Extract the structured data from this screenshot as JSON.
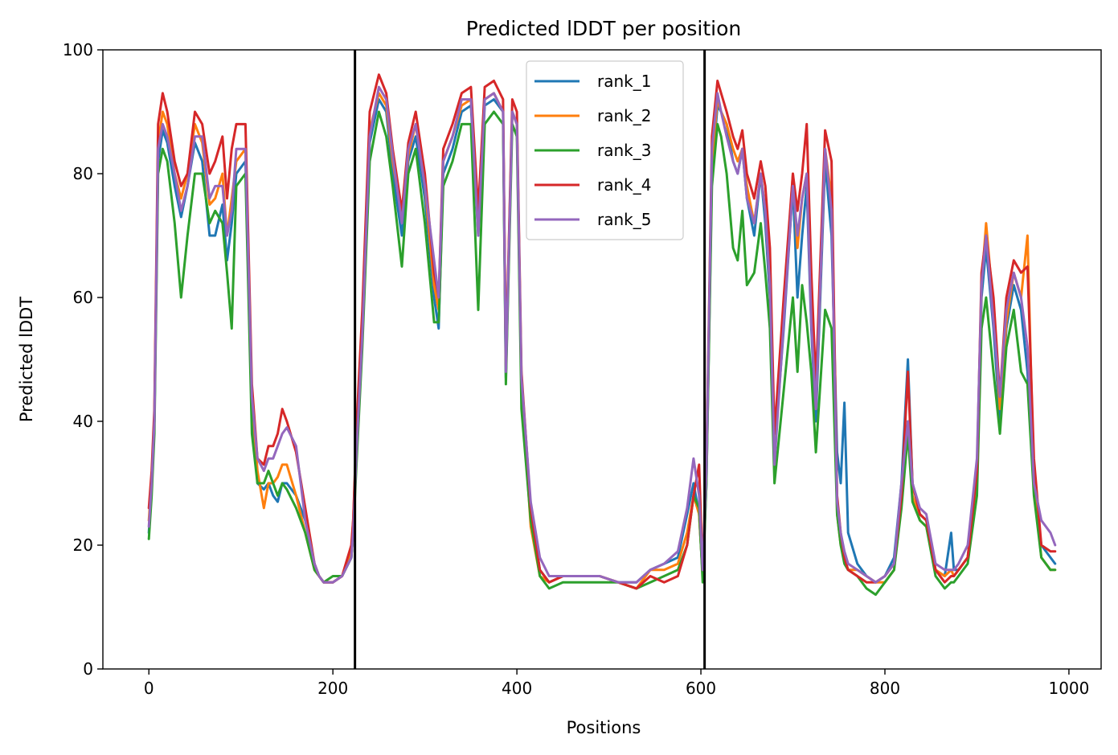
{
  "chart_data": {
    "type": "line",
    "title": "Predicted lDDT per position",
    "xlabel": "Positions",
    "ylabel": "Predicted lDDT",
    "xlim": [
      -50,
      1035
    ],
    "ylim": [
      0,
      100
    ],
    "xticks": [
      0,
      200,
      400,
      600,
      800,
      1000
    ],
    "yticks": [
      0,
      20,
      40,
      60,
      80,
      100
    ],
    "grid": false,
    "legend_position": "top-center",
    "vlines": [
      224,
      604
    ],
    "vline_color": "#000000",
    "series": [
      {
        "name": "rank_1",
        "color": "#1f77b4",
        "x": [
          0,
          3,
          6,
          10,
          15,
          20,
          28,
          35,
          42,
          50,
          58,
          66,
          72,
          80,
          85,
          90,
          95,
          105,
          112,
          118,
          125,
          130,
          135,
          140,
          145,
          150,
          160,
          170,
          180,
          185,
          190,
          200,
          210,
          220,
          222,
          226,
          232,
          240,
          250,
          258,
          265,
          275,
          282,
          290,
          300,
          310,
          315,
          320,
          330,
          340,
          350,
          358,
          365,
          375,
          385,
          388,
          395,
          400,
          405,
          415,
          425,
          435,
          450,
          470,
          490,
          510,
          530,
          545,
          560,
          575,
          585,
          592,
          598,
          602,
          606,
          612,
          618,
          622,
          628,
          635,
          640,
          645,
          650,
          658,
          665,
          670,
          675,
          680,
          690,
          700,
          705,
          710,
          715,
          720,
          725,
          735,
          742,
          748,
          752,
          756,
          760,
          770,
          780,
          790,
          800,
          810,
          818,
          825,
          830,
          838,
          845,
          855,
          865,
          872,
          875,
          880,
          890,
          900,
          905,
          910,
          918,
          925,
          932,
          940,
          948,
          955,
          962,
          970,
          980,
          985
        ],
        "y": [
          22,
          30,
          40,
          82,
          87,
          85,
          78,
          73,
          78,
          85,
          82,
          70,
          70,
          75,
          66,
          72,
          80,
          82,
          42,
          30,
          29,
          30,
          28,
          27,
          30,
          30,
          28,
          24,
          17,
          15,
          14,
          14,
          15,
          18,
          22,
          36,
          55,
          85,
          92,
          90,
          80,
          70,
          82,
          86,
          76,
          60,
          55,
          80,
          84,
          90,
          91,
          70,
          91,
          92,
          90,
          47,
          90,
          88,
          45,
          25,
          16,
          14,
          15,
          15,
          15,
          14,
          14,
          16,
          17,
          18,
          25,
          30,
          25,
          15,
          30,
          80,
          91,
          90,
          88,
          82,
          80,
          84,
          76,
          70,
          80,
          72,
          60,
          35,
          55,
          78,
          60,
          70,
          78,
          55,
          40,
          82,
          70,
          35,
          30,
          43,
          22,
          17,
          15,
          14,
          15,
          18,
          30,
          50,
          30,
          25,
          24,
          16,
          15,
          22,
          16,
          16,
          18,
          30,
          60,
          68,
          55,
          40,
          55,
          62,
          58,
          48,
          30,
          20,
          18,
          17
        ]
      },
      {
        "name": "rank_2",
        "color": "#ff7f0e",
        "x": [
          0,
          3,
          6,
          10,
          15,
          20,
          28,
          35,
          42,
          50,
          58,
          66,
          72,
          80,
          85,
          90,
          95,
          105,
          112,
          118,
          125,
          130,
          135,
          140,
          145,
          150,
          160,
          170,
          180,
          185,
          190,
          200,
          210,
          220,
          222,
          226,
          232,
          240,
          250,
          258,
          265,
          275,
          282,
          290,
          300,
          310,
          315,
          320,
          330,
          340,
          350,
          358,
          365,
          375,
          385,
          388,
          395,
          400,
          405,
          415,
          425,
          435,
          450,
          470,
          490,
          510,
          530,
          545,
          560,
          575,
          585,
          592,
          598,
          602,
          606,
          612,
          618,
          622,
          628,
          635,
          640,
          645,
          650,
          658,
          665,
          670,
          675,
          680,
          690,
          700,
          705,
          710,
          715,
          720,
          725,
          735,
          742,
          748,
          752,
          756,
          760,
          770,
          780,
          790,
          800,
          810,
          818,
          825,
          830,
          838,
          845,
          855,
          865,
          872,
          875,
          880,
          890,
          900,
          905,
          910,
          918,
          925,
          932,
          940,
          948,
          955,
          962,
          970,
          980,
          985
        ],
        "y": [
          24,
          31,
          41,
          85,
          90,
          88,
          80,
          76,
          80,
          88,
          85,
          75,
          76,
          80,
          70,
          76,
          82,
          84,
          44,
          32,
          26,
          30,
          30,
          31,
          33,
          33,
          28,
          22,
          16,
          15,
          14,
          14,
          15,
          19,
          24,
          38,
          57,
          87,
          93,
          91,
          82,
          73,
          83,
          88,
          78,
          62,
          58,
          82,
          86,
          91,
          92,
          72,
          92,
          93,
          90,
          50,
          90,
          88,
          46,
          23,
          15,
          14,
          15,
          15,
          15,
          14,
          13,
          16,
          16,
          17,
          22,
          28,
          25,
          15,
          32,
          82,
          92,
          90,
          88,
          84,
          82,
          84,
          78,
          72,
          80,
          74,
          62,
          36,
          58,
          80,
          68,
          76,
          80,
          60,
          42,
          84,
          76,
          25,
          20,
          18,
          16,
          16,
          15,
          14,
          14,
          16,
          27,
          40,
          28,
          24,
          23,
          16,
          15,
          16,
          15,
          16,
          18,
          30,
          62,
          72,
          58,
          42,
          56,
          64,
          60,
          70,
          30,
          18,
          16,
          16
        ]
      },
      {
        "name": "rank_3",
        "color": "#2ca02c",
        "x": [
          0,
          3,
          6,
          10,
          15,
          20,
          28,
          35,
          42,
          50,
          58,
          66,
          72,
          80,
          85,
          90,
          95,
          105,
          112,
          118,
          125,
          130,
          135,
          140,
          145,
          150,
          160,
          170,
          180,
          185,
          190,
          200,
          210,
          220,
          222,
          226,
          232,
          240,
          250,
          258,
          265,
          275,
          282,
          290,
          300,
          310,
          315,
          320,
          330,
          340,
          350,
          358,
          365,
          375,
          385,
          388,
          395,
          400,
          405,
          415,
          425,
          435,
          450,
          470,
          490,
          510,
          530,
          545,
          560,
          575,
          585,
          592,
          598,
          602,
          606,
          612,
          618,
          622,
          628,
          635,
          640,
          645,
          650,
          658,
          665,
          670,
          675,
          680,
          690,
          700,
          705,
          710,
          715,
          720,
          725,
          735,
          742,
          748,
          752,
          756,
          760,
          770,
          780,
          790,
          800,
          810,
          818,
          825,
          830,
          838,
          845,
          855,
          865,
          872,
          875,
          880,
          890,
          900,
          905,
          910,
          918,
          925,
          932,
          940,
          948,
          955,
          962,
          970,
          980,
          985
        ],
        "y": [
          21,
          28,
          38,
          80,
          84,
          82,
          72,
          60,
          70,
          80,
          80,
          72,
          74,
          72,
          64,
          55,
          78,
          80,
          38,
          30,
          30,
          32,
          30,
          28,
          30,
          29,
          26,
          22,
          16,
          15,
          14,
          15,
          15,
          18,
          22,
          34,
          52,
          82,
          90,
          86,
          78,
          65,
          80,
          84,
          72,
          56,
          56,
          78,
          82,
          88,
          88,
          58,
          88,
          90,
          88,
          46,
          88,
          86,
          42,
          24,
          15,
          13,
          14,
          14,
          14,
          14,
          13,
          14,
          15,
          16,
          20,
          28,
          26,
          14,
          30,
          78,
          88,
          86,
          80,
          68,
          66,
          74,
          62,
          64,
          72,
          64,
          55,
          30,
          45,
          60,
          48,
          62,
          56,
          48,
          35,
          58,
          55,
          25,
          20,
          17,
          16,
          15,
          13,
          12,
          14,
          16,
          26,
          38,
          27,
          24,
          23,
          15,
          13,
          14,
          14,
          15,
          17,
          28,
          55,
          60,
          48,
          38,
          52,
          58,
          48,
          46,
          28,
          18,
          16,
          16
        ]
      },
      {
        "name": "rank_4",
        "color": "#d62728",
        "x": [
          0,
          3,
          6,
          10,
          15,
          20,
          28,
          35,
          42,
          50,
          58,
          66,
          72,
          80,
          85,
          90,
          95,
          105,
          112,
          118,
          125,
          130,
          135,
          140,
          145,
          150,
          160,
          170,
          180,
          185,
          190,
          200,
          210,
          220,
          222,
          226,
          232,
          240,
          250,
          258,
          265,
          275,
          282,
          290,
          300,
          310,
          315,
          320,
          330,
          340,
          350,
          358,
          365,
          375,
          385,
          388,
          395,
          400,
          405,
          415,
          425,
          435,
          450,
          470,
          490,
          510,
          530,
          545,
          560,
          575,
          585,
          592,
          598,
          602,
          606,
          612,
          618,
          622,
          628,
          635,
          640,
          645,
          650,
          658,
          665,
          670,
          675,
          680,
          690,
          700,
          705,
          710,
          715,
          720,
          725,
          735,
          742,
          748,
          752,
          756,
          760,
          770,
          780,
          790,
          800,
          810,
          818,
          825,
          830,
          838,
          845,
          855,
          865,
          872,
          875,
          880,
          890,
          900,
          905,
          910,
          918,
          925,
          932,
          940,
          948,
          955,
          962,
          970,
          980,
          985
        ],
        "y": [
          26,
          32,
          42,
          88,
          93,
          90,
          82,
          78,
          80,
          90,
          88,
          80,
          82,
          86,
          76,
          84,
          88,
          88,
          46,
          34,
          33,
          36,
          36,
          38,
          42,
          40,
          35,
          26,
          17,
          15,
          14,
          14,
          15,
          20,
          24,
          40,
          58,
          90,
          96,
          93,
          84,
          74,
          85,
          90,
          80,
          64,
          60,
          84,
          88,
          93,
          94,
          74,
          94,
          95,
          92,
          49,
          92,
          90,
          48,
          26,
          16,
          14,
          15,
          15,
          15,
          14,
          13,
          15,
          14,
          15,
          20,
          28,
          33,
          16,
          33,
          86,
          95,
          93,
          90,
          86,
          84,
          87,
          80,
          76,
          82,
          78,
          68,
          38,
          60,
          80,
          74,
          80,
          88,
          64,
          46,
          87,
          82,
          28,
          22,
          18,
          16,
          15,
          14,
          14,
          15,
          17,
          28,
          48,
          30,
          25,
          24,
          16,
          14,
          15,
          15,
          16,
          18,
          32,
          64,
          70,
          60,
          44,
          60,
          66,
          64,
          65,
          34,
          20,
          19,
          19
        ]
      },
      {
        "name": "rank_5",
        "color": "#9467bd",
        "x": [
          0,
          3,
          6,
          10,
          15,
          20,
          28,
          35,
          42,
          50,
          58,
          66,
          72,
          80,
          85,
          90,
          95,
          105,
          112,
          118,
          125,
          130,
          135,
          140,
          145,
          150,
          160,
          170,
          180,
          185,
          190,
          200,
          210,
          220,
          222,
          226,
          232,
          240,
          250,
          258,
          265,
          275,
          282,
          290,
          300,
          310,
          315,
          320,
          330,
          340,
          350,
          358,
          365,
          375,
          385,
          388,
          395,
          400,
          405,
          415,
          425,
          435,
          450,
          470,
          490,
          510,
          530,
          545,
          560,
          575,
          585,
          592,
          598,
          602,
          606,
          612,
          618,
          622,
          628,
          635,
          640,
          645,
          650,
          658,
          665,
          670,
          675,
          680,
          690,
          700,
          705,
          710,
          715,
          720,
          725,
          735,
          742,
          748,
          752,
          756,
          760,
          770,
          780,
          790,
          800,
          810,
          818,
          825,
          830,
          838,
          845,
          855,
          865,
          872,
          875,
          880,
          890,
          900,
          905,
          910,
          918,
          925,
          932,
          940,
          948,
          955,
          962,
          970,
          980,
          985
        ],
        "y": [
          23,
          30,
          40,
          84,
          88,
          86,
          80,
          74,
          78,
          86,
          86,
          76,
          78,
          78,
          70,
          74,
          84,
          84,
          44,
          34,
          32,
          34,
          34,
          36,
          38,
          39,
          36,
          24,
          17,
          15,
          14,
          14,
          15,
          18,
          22,
          36,
          54,
          86,
          94,
          92,
          83,
          72,
          84,
          88,
          78,
          66,
          60,
          82,
          86,
          92,
          92,
          70,
          92,
          93,
          90,
          48,
          90,
          88,
          47,
          27,
          18,
          15,
          15,
          15,
          15,
          14,
          14,
          16,
          17,
          19,
          26,
          34,
          28,
          16,
          32,
          84,
          93,
          90,
          86,
          82,
          80,
          84,
          76,
          72,
          80,
          74,
          62,
          33,
          56,
          78,
          70,
          76,
          80,
          56,
          42,
          84,
          74,
          27,
          22,
          19,
          17,
          16,
          15,
          14,
          15,
          17,
          30,
          40,
          30,
          26,
          25,
          17,
          16,
          16,
          16,
          17,
          20,
          34,
          62,
          70,
          56,
          44,
          58,
          64,
          60,
          52,
          30,
          24,
          22,
          20
        ]
      }
    ]
  }
}
